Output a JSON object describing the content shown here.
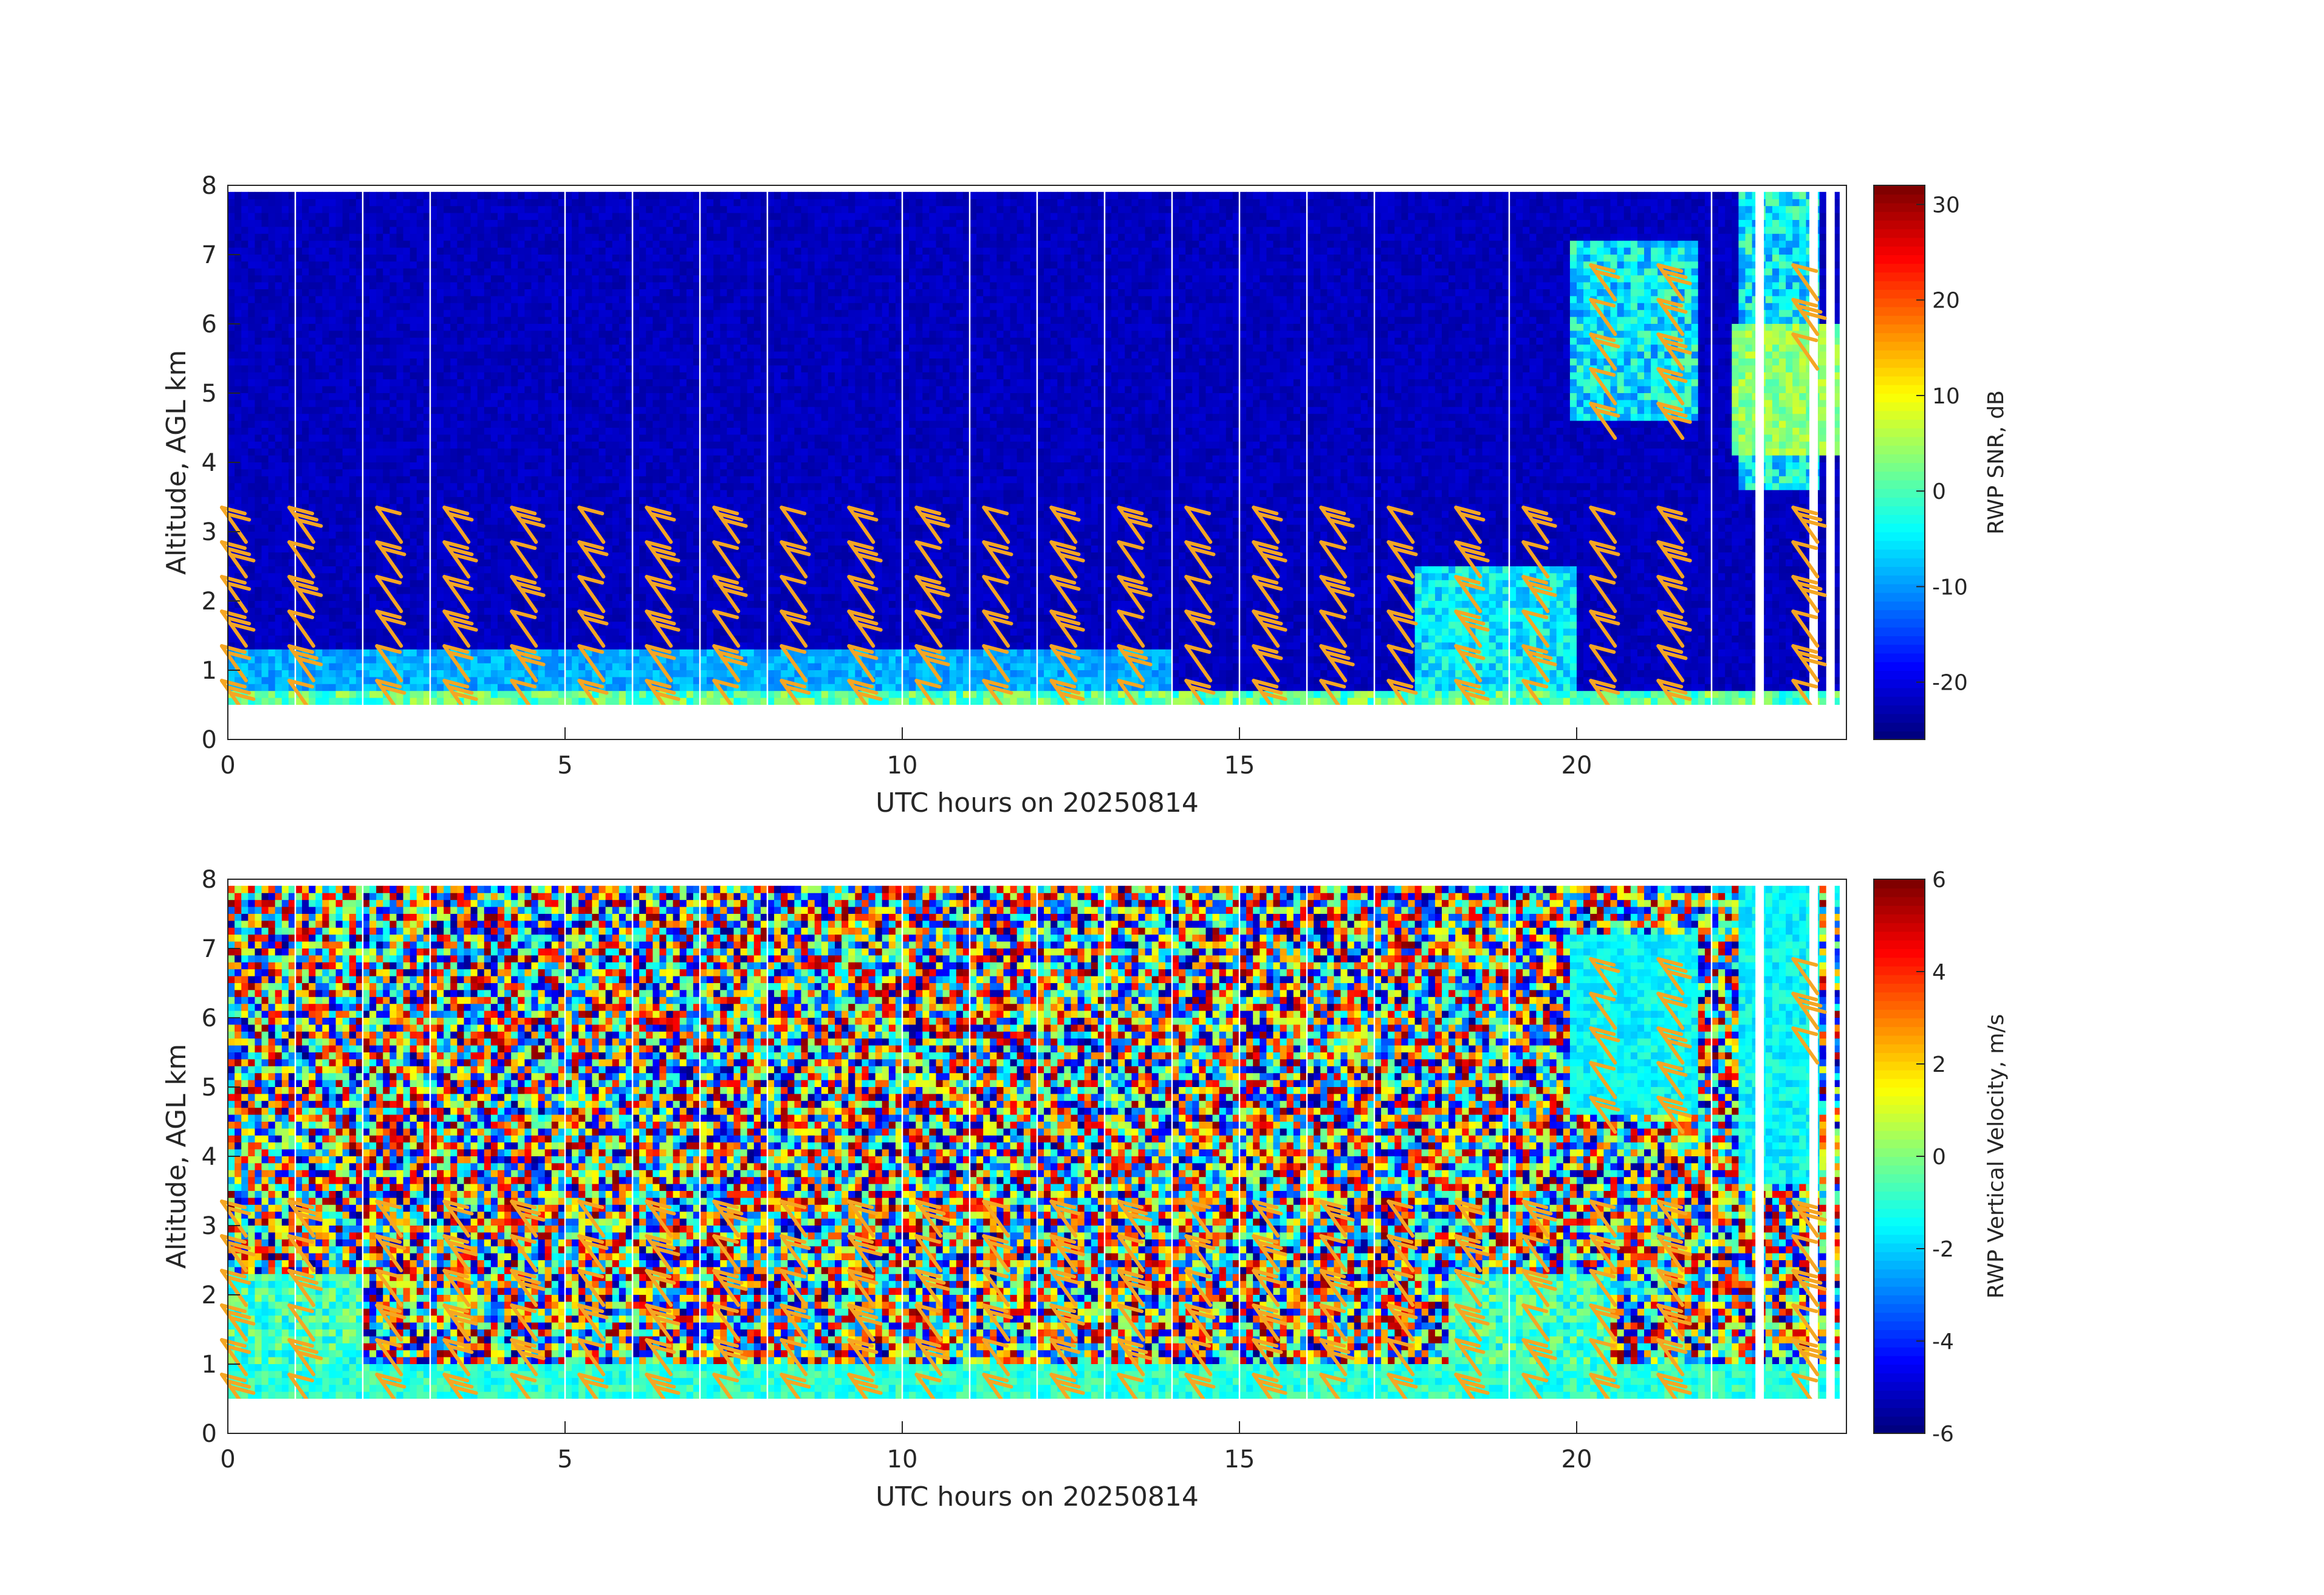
{
  "chart_data": [
    {
      "type": "heatmap",
      "title": "",
      "xlabel": "UTC hours on 20250814",
      "ylabel": "Altitude, AGL km",
      "xlim": [
        0,
        24
      ],
      "ylim": [
        0,
        8
      ],
      "xticks": [
        0,
        5,
        10,
        15,
        20
      ],
      "yticks": [
        0,
        1,
        2,
        3,
        4,
        5,
        6,
        7,
        8
      ],
      "colorbar": {
        "label": "RWP SNR, dB",
        "range": [
          -26,
          32
        ],
        "ticks": [
          -20,
          -10,
          0,
          10,
          20,
          30
        ],
        "colormap": "jet"
      },
      "hourly_gaps": [
        1,
        2,
        3,
        5,
        6,
        7,
        8,
        10,
        11,
        12,
        13,
        14,
        15,
        16,
        17,
        19,
        22
      ],
      "description_values": {
        "background_snr_db": -24,
        "boundary_layer_top_km": 0.6,
        "enhanced_layer_km": [
          [
            0.5,
            1.2,
            14
          ],
          [
            17.5,
            20,
            2.5
          ]
        ],
        "upper_echo_hours": [
          19.8,
          23.5
        ]
      },
      "wind_barbs": {
        "color": "#f5a623",
        "times": [
          0,
          1,
          2.3,
          3.3,
          4.3,
          5.3,
          6.3,
          7.3,
          8.3,
          9.3,
          10.3,
          11.3,
          12.3,
          13.3,
          14.3,
          15.3,
          16.3,
          17.3,
          18.3,
          19.3,
          20.3,
          21.3,
          23.3
        ],
        "altitudes_km": [
          0.8,
          1.3,
          1.8,
          2.3,
          2.8,
          3.3,
          4.8,
          5.3,
          5.8,
          6.3,
          6.8
        ]
      }
    },
    {
      "type": "heatmap",
      "title": "",
      "xlabel": "UTC hours on 20250814",
      "ylabel": "Altitude, AGL km",
      "xlim": [
        0,
        24
      ],
      "ylim": [
        0,
        8
      ],
      "xticks": [
        0,
        5,
        10,
        15,
        20
      ],
      "yticks": [
        0,
        1,
        2,
        3,
        4,
        5,
        6,
        7,
        8
      ],
      "colorbar": {
        "label": "RWP Vertical Velocity, m/s",
        "range": [
          -6,
          6
        ],
        "ticks": [
          -6,
          -4,
          -2,
          0,
          2,
          4,
          6
        ],
        "colormap": "jet"
      },
      "hourly_gaps": [
        1,
        2,
        3,
        5,
        6,
        7,
        8,
        10,
        11,
        12,
        13,
        14,
        15,
        16,
        17,
        19,
        22
      ],
      "description_values": {
        "noise_velocity_ms": [
          -6,
          6
        ],
        "boundary_layer_velocity_ms": -1.5,
        "boundary_layer_top_km": 1.0,
        "upper_echo_hours": [
          19.8,
          23.5
        ]
      },
      "wind_barbs": {
        "color": "#f5a623",
        "times": [
          0,
          1,
          2.3,
          3.3,
          4.3,
          5.3,
          6.3,
          7.3,
          8.3,
          9.3,
          10.3,
          11.3,
          12.3,
          13.3,
          14.3,
          15.3,
          16.3,
          17.3,
          18.3,
          19.3,
          20.3,
          21.3,
          23.3
        ],
        "altitudes_km": [
          0.8,
          1.3,
          1.8,
          2.3,
          2.8,
          3.3,
          4.8,
          5.3,
          5.8,
          6.3,
          6.8
        ]
      }
    }
  ],
  "colors": {
    "axis": "#262626",
    "barb": "#f5a623",
    "gap": "#ffffff"
  }
}
